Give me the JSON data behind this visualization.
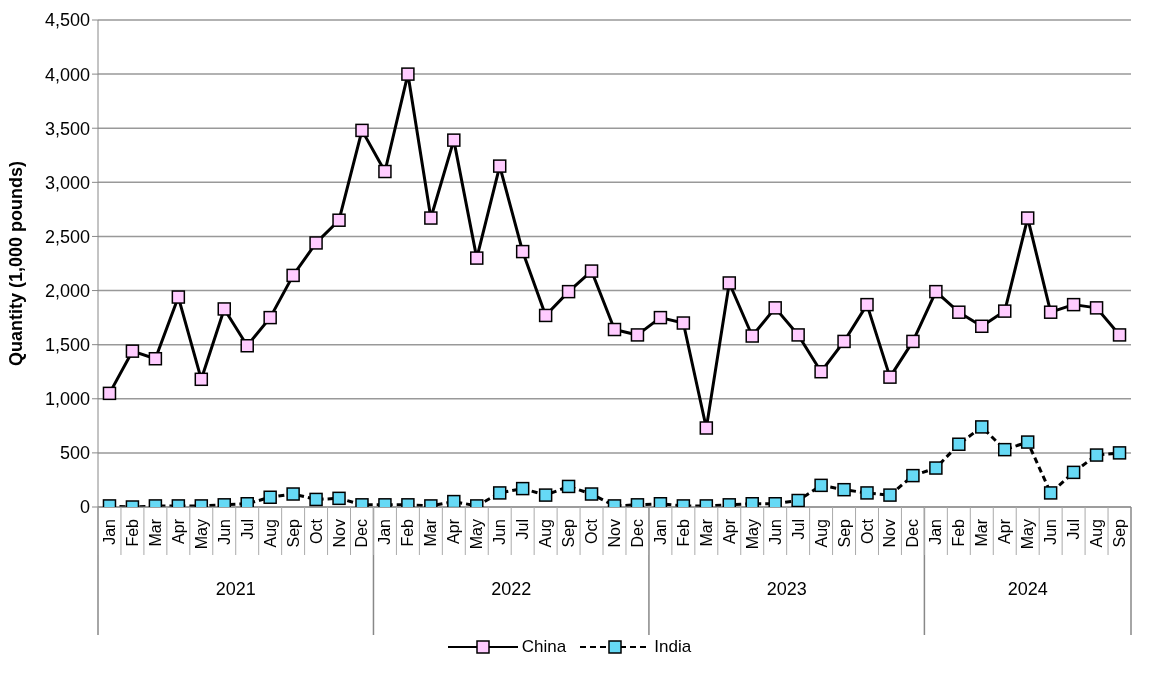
{
  "chart_data": {
    "type": "line",
    "ylabel": "Quantity (1,000 pounds)",
    "categories": [
      "Jan",
      "Feb",
      "Mar",
      "Apr",
      "May",
      "Jun",
      "Jul",
      "Aug",
      "Sep",
      "Oct",
      "Nov",
      "Dec",
      "Jan",
      "Feb",
      "Mar",
      "Apr",
      "May",
      "Jun",
      "Jul",
      "Aug",
      "Sep",
      "Oct",
      "Nov",
      "Dec",
      "Jan",
      "Feb",
      "Mar",
      "Apr",
      "May",
      "Jun",
      "Jul",
      "Aug",
      "Sep",
      "Oct",
      "Nov",
      "Dec",
      "Jan",
      "Feb",
      "Mar",
      "Apr",
      "May",
      "Jun",
      "Jul",
      "Aug",
      "Sep"
    ],
    "annotations": [
      "2021",
      "2022",
      "2023",
      "2024"
    ],
    "series": [
      {
        "name": "China",
        "color": "#ffccff",
        "line_style": "solid",
        "values": [
          1050,
          1440,
          1370,
          1940,
          1180,
          1830,
          1490,
          1750,
          2140,
          2440,
          2650,
          3480,
          3100,
          4000,
          2670,
          3390,
          2300,
          3150,
          2360,
          1770,
          1990,
          2180,
          1640,
          1590,
          1750,
          1700,
          730,
          2070,
          1580,
          1840,
          1590,
          1250,
          1530,
          1870,
          1200,
          1530,
          1990,
          1800,
          1670,
          1810,
          2670,
          1800,
          1870,
          1840,
          1590
        ]
      },
      {
        "name": "India",
        "color": "#66d9f5",
        "line_style": "dashed",
        "values": [
          10,
          0,
          10,
          10,
          10,
          20,
          30,
          90,
          120,
          70,
          80,
          20,
          20,
          20,
          10,
          50,
          10,
          130,
          170,
          110,
          190,
          120,
          10,
          20,
          30,
          10,
          10,
          20,
          30,
          30,
          60,
          200,
          160,
          130,
          110,
          290,
          360,
          580,
          740,
          530,
          600,
          130,
          320,
          480,
          500
        ]
      }
    ],
    "ylim": [
      0,
      4500
    ],
    "yticks": [
      0,
      500,
      {
        "value": 1000,
        "label": "1,000"
      },
      {
        "value": 1500,
        "label": "1,500"
      },
      {
        "value": 2000,
        "label": "2,000"
      },
      {
        "value": 2500,
        "label": "2,500"
      },
      {
        "value": 3000,
        "label": "3,000"
      },
      {
        "value": 3500,
        "label": "3,500"
      },
      {
        "value": 4000,
        "label": "4,000"
      },
      {
        "value": 4500,
        "label": "4,500"
      }
    ],
    "grid": "y",
    "legend": "bottom",
    "marker": "square"
  }
}
